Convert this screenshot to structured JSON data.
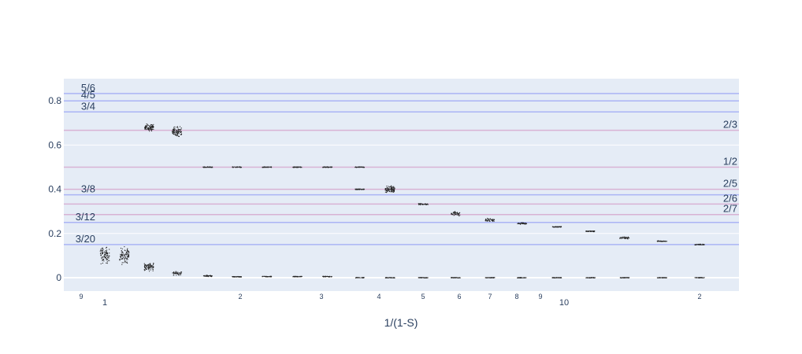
{
  "chart_data": {
    "type": "scatter",
    "xlabel": "1/(1-S)",
    "x_axis_scale": "log",
    "x_tick_labels": [
      "9",
      "1",
      "2",
      "3",
      "4",
      "5",
      "6",
      "7",
      "8",
      "9",
      "10",
      "2"
    ],
    "y_ticks": [
      0,
      0.2,
      0.4,
      0.6,
      0.8
    ],
    "y_tick_labels": [
      "0",
      "0.2",
      "0.4",
      "0.6",
      "0.8"
    ],
    "ylim": [
      -0.06,
      0.9
    ],
    "grid": true,
    "plot_background": "#e5ecf6",
    "point_color": "#222222",
    "reference_lines": [
      {
        "label": "5/6",
        "value": 0.8333,
        "side": "left",
        "color": "#aab4f5"
      },
      {
        "label": "4/5",
        "value": 0.8,
        "side": "left",
        "color": "#aab4f5"
      },
      {
        "label": "3/4",
        "value": 0.75,
        "side": "left",
        "color": "#aab4f5"
      },
      {
        "label": "2/3",
        "value": 0.6667,
        "side": "right",
        "color": "#d8b2d4"
      },
      {
        "label": "1/2",
        "value": 0.5,
        "side": "right",
        "color": "#d8b2d4"
      },
      {
        "label": "2/5",
        "value": 0.4,
        "side": "right",
        "color": "#d8b2d4"
      },
      {
        "label": "3/8",
        "value": 0.375,
        "side": "left",
        "color": "#aab4f5"
      },
      {
        "label": "2/6",
        "value": 0.3333,
        "side": "right",
        "color": "#d8b2d4"
      },
      {
        "label": "2/7",
        "value": 0.2857,
        "side": "right",
        "color": "#d8b2d4"
      },
      {
        "label": "3/12",
        "value": 0.25,
        "side": "left",
        "color": "#aab4f5"
      },
      {
        "label": "3/20",
        "value": 0.15,
        "side": "left",
        "color": "#aab4f5"
      }
    ],
    "clusters": [
      {
        "x": 1.0,
        "y": 0.1,
        "spread": 0.05
      },
      {
        "x": 1.1,
        "y": 0.1,
        "spread": 0.05
      },
      {
        "x": 1.24,
        "y": 0.05,
        "spread": 0.025
      },
      {
        "x": 1.24,
        "y": 0.68,
        "spread": 0.02
      },
      {
        "x": 1.42,
        "y": 0.02,
        "spread": 0.012
      },
      {
        "x": 1.42,
        "y": 0.66,
        "spread": 0.03
      },
      {
        "x": 1.65,
        "y": 0.008,
        "spread": 0.004
      },
      {
        "x": 1.65,
        "y": 0.5,
        "spread": 0.002
      },
      {
        "x": 1.9,
        "y": 0.004,
        "spread": 0.002
      },
      {
        "x": 1.9,
        "y": 0.5,
        "spread": 0.002
      },
      {
        "x": 2.2,
        "y": 0.005,
        "spread": 0.002
      },
      {
        "x": 2.2,
        "y": 0.5,
        "spread": 0.002
      },
      {
        "x": 2.55,
        "y": 0.005,
        "spread": 0.002
      },
      {
        "x": 2.55,
        "y": 0.5,
        "spread": 0.002
      },
      {
        "x": 2.95,
        "y": 0.005,
        "spread": 0.002
      },
      {
        "x": 2.95,
        "y": 0.5,
        "spread": 0.002
      },
      {
        "x": 3.45,
        "y": 0.5,
        "spread": 0.002
      },
      {
        "x": 3.45,
        "y": 0.4,
        "spread": 0.003
      },
      {
        "x": 4.0,
        "y": 0.4,
        "spread": 0.02
      },
      {
        "x": 4.7,
        "y": 0.333,
        "spread": 0.006
      },
      {
        "x": 5.5,
        "y": 0.29,
        "spread": 0.015
      },
      {
        "x": 6.5,
        "y": 0.26,
        "spread": 0.012
      },
      {
        "x": 7.6,
        "y": 0.245,
        "spread": 0.005
      },
      {
        "x": 9.0,
        "y": 0.23,
        "spread": 0.003
      },
      {
        "x": 10.6,
        "y": 0.21,
        "spread": 0.003
      },
      {
        "x": 12.5,
        "y": 0.18,
        "spread": 0.006
      },
      {
        "x": 15.0,
        "y": 0.165,
        "spread": 0.003
      },
      {
        "x": 18.0,
        "y": 0.15,
        "spread": 0.003
      },
      {
        "x": 3.45,
        "y": 0.0,
        "spread": 0.001
      },
      {
        "x": 4.0,
        "y": 0.0,
        "spread": 0.001
      },
      {
        "x": 4.7,
        "y": 0.0,
        "spread": 0.001
      },
      {
        "x": 5.5,
        "y": 0.0,
        "spread": 0.001
      },
      {
        "x": 6.5,
        "y": 0.0,
        "spread": 0.001
      },
      {
        "x": 7.6,
        "y": 0.0,
        "spread": 0.001
      },
      {
        "x": 9.0,
        "y": 0.0,
        "spread": 0.001
      },
      {
        "x": 10.6,
        "y": 0.0,
        "spread": 0.001
      },
      {
        "x": 12.5,
        "y": 0.0,
        "spread": 0.001
      },
      {
        "x": 15.0,
        "y": 0.0,
        "spread": 0.001
      },
      {
        "x": 18.0,
        "y": 0.0,
        "spread": 0.001
      }
    ]
  }
}
